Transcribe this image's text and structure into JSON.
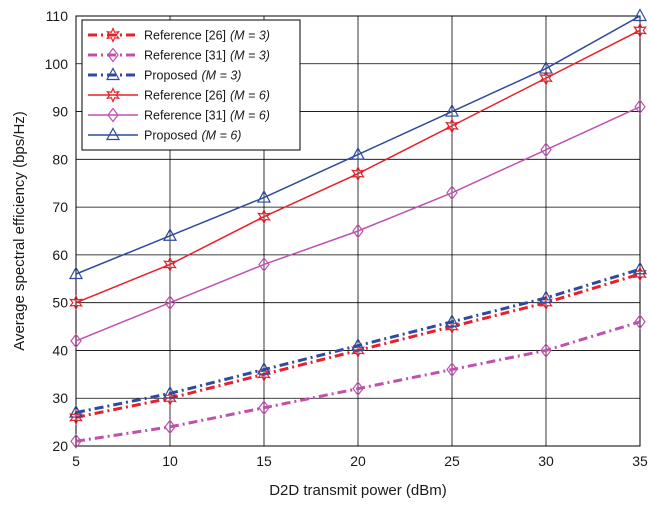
{
  "chart_data": {
    "type": "line",
    "xlabel": "D2D transmit power (dBm)",
    "ylabel": "Average spectral efficiency (bps/Hz)",
    "xlim": [
      5,
      35
    ],
    "ylim": [
      20,
      110
    ],
    "xticks": [
      "5",
      "10",
      "15",
      "20",
      "25",
      "30",
      "35"
    ],
    "yticks": [
      "20",
      "30",
      "40",
      "50",
      "60",
      "70",
      "80",
      "90",
      "100",
      "110"
    ],
    "grid": true,
    "legend_position": "top-left",
    "x": [
      5,
      10,
      15,
      20,
      25,
      30,
      35
    ],
    "series": [
      {
        "name": "Reference [26]",
        "suffix": "(M = 3)",
        "values": [
          26,
          30,
          35,
          40,
          45,
          50,
          56
        ],
        "color": "#e8202a",
        "marker": "star",
        "dashed": true
      },
      {
        "name": "Reference [31]",
        "suffix": "(M = 3)",
        "values": [
          21,
          24,
          28,
          32,
          36,
          40,
          46
        ],
        "color": "#c050b0",
        "marker": "diamond",
        "dashed": true
      },
      {
        "name": "Proposed",
        "suffix": "(M = 3)",
        "values": [
          27,
          31,
          36,
          41,
          46,
          51,
          57
        ],
        "color": "#2f4a9e",
        "marker": "triangle",
        "dashed": true
      },
      {
        "name": "Reference [26]",
        "suffix": "(M = 6)",
        "values": [
          50,
          58,
          68,
          77,
          87,
          97,
          107
        ],
        "color": "#e8202a",
        "marker": "star",
        "dashed": false
      },
      {
        "name": "Reference [31]",
        "suffix": "(M = 6)",
        "values": [
          42,
          50,
          58,
          65,
          73,
          82,
          91
        ],
        "color": "#c050b0",
        "marker": "diamond",
        "dashed": false
      },
      {
        "name": "Proposed",
        "suffix": "(M = 6)",
        "values": [
          56,
          64,
          72,
          81,
          90,
          99,
          110
        ],
        "color": "#2f4a9e",
        "marker": "triangle",
        "dashed": false
      }
    ]
  }
}
